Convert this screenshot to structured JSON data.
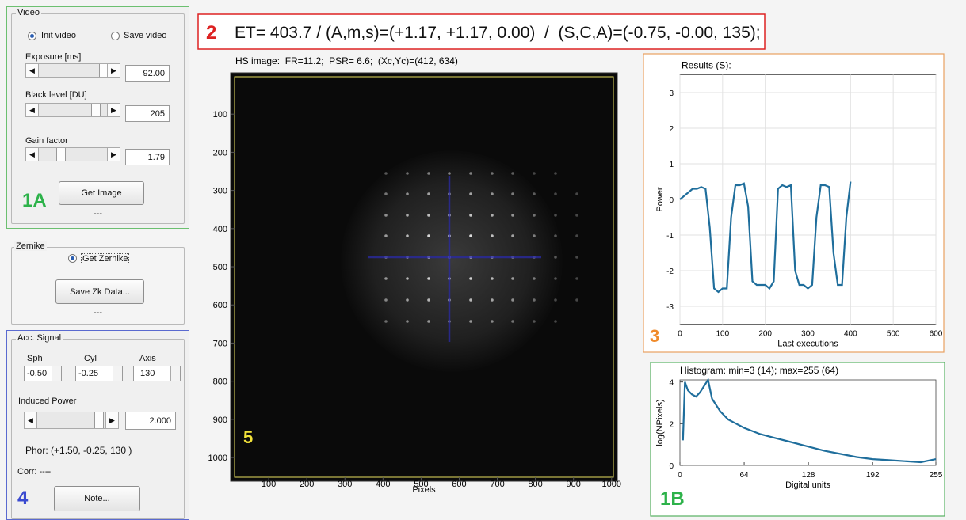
{
  "video": {
    "title": "Video",
    "init_video": "Init video",
    "save_video": "Save video",
    "exposure": {
      "label": "Exposure [ms]",
      "value": "92.00"
    },
    "black_level": {
      "label": "Black level [DU]",
      "value": "205"
    },
    "gain": {
      "label": "Gain factor",
      "value": "1.79"
    },
    "button": "Get Image",
    "status": "---",
    "tag": "1A"
  },
  "zernike": {
    "title": "Zernike",
    "radio": "Get Zernike",
    "button": "Save Zk Data...",
    "status": "---"
  },
  "acc_signal": {
    "title": "Acc. Signal",
    "sph": {
      "label": "Sph",
      "value": "-0.50"
    },
    "cyl": {
      "label": "Cyl",
      "value": "-0.25"
    },
    "axis": {
      "label": "Axis",
      "value": "130"
    },
    "induced_power": {
      "label": "Induced Power",
      "value": "2.000"
    },
    "phor": "Phor: (+1.50, -0.25, 130 )",
    "corr": "Corr: ----",
    "tag": "4",
    "button": "Note..."
  },
  "header": {
    "tag": "2",
    "text": "ET= 403.7 / (A,m,s)=(+1.17, +1.17, 0.00)  /  (S,C,A)=(-0.75, -0.00, 135);"
  },
  "hs_image": {
    "caption": "HS image:  FR=11.2;  PSR= 6.6;  (Xc,Yc)=(412, 634)",
    "tag": "5",
    "x_label": "Pixels",
    "xlim": [
      0,
      1015
    ],
    "ylim": [
      0,
      1060
    ],
    "xticks": [
      100,
      200,
      300,
      400,
      500,
      600,
      700,
      800,
      900,
      1000
    ],
    "yticks": [
      100,
      200,
      300,
      400,
      500,
      600,
      700,
      800,
      900,
      1000
    ]
  },
  "results": {
    "tag": "3",
    "chart_data": {
      "type": "line",
      "title": "Results (S):",
      "x_label": "Last executions",
      "y_label": "Power",
      "grid": true,
      "xlim": [
        0,
        600
      ],
      "ylim": [
        -3.5,
        3.5
      ],
      "xticks": [
        0,
        100,
        200,
        300,
        400,
        500,
        600
      ],
      "yticks": [
        -3,
        -2,
        -1,
        0,
        1,
        2,
        3
      ],
      "x": [
        0,
        10,
        20,
        30,
        40,
        50,
        60,
        70,
        80,
        90,
        100,
        110,
        120,
        130,
        140,
        150,
        160,
        170,
        180,
        190,
        200,
        210,
        220,
        230,
        240,
        250,
        260,
        270,
        280,
        290,
        300,
        310,
        320,
        330,
        340,
        350,
        360,
        370,
        380,
        390,
        400
      ],
      "series": [
        {
          "color": "#1f6e9c",
          "values": [
            0.0,
            0.1,
            0.2,
            0.3,
            0.3,
            0.35,
            0.3,
            -0.8,
            -2.5,
            -2.6,
            -2.5,
            -2.5,
            -0.5,
            0.4,
            0.4,
            0.45,
            -0.2,
            -2.3,
            -2.4,
            -2.4,
            -2.4,
            -2.5,
            -2.3,
            0.3,
            0.4,
            0.35,
            0.4,
            -2.0,
            -2.4,
            -2.4,
            -2.5,
            -2.4,
            -0.5,
            0.4,
            0.4,
            0.35,
            -1.5,
            -2.4,
            -2.4,
            -0.5,
            0.5
          ]
        }
      ]
    }
  },
  "histogram": {
    "tag": "1B",
    "chart_data": {
      "type": "line",
      "title": "Histogram: min=3 (14); max=255 (64)",
      "x_label": "Digital units",
      "y_label": "log(NPixels)",
      "grid": false,
      "xlim": [
        0,
        255
      ],
      "ylim": [
        0,
        4.1
      ],
      "xticks": [
        0,
        64,
        128,
        192,
        255
      ],
      "yticks": [
        0,
        2,
        4
      ],
      "x": [
        3,
        5,
        8,
        12,
        16,
        20,
        24,
        28,
        32,
        40,
        48,
        56,
        64,
        80,
        96,
        112,
        128,
        144,
        160,
        176,
        192,
        208,
        224,
        240,
        255
      ],
      "series": [
        {
          "color": "#1f6e9c",
          "values": [
            1.2,
            4.0,
            3.6,
            3.4,
            3.3,
            3.5,
            3.8,
            4.1,
            3.2,
            2.6,
            2.2,
            2.0,
            1.8,
            1.5,
            1.3,
            1.1,
            0.9,
            0.7,
            0.55,
            0.4,
            0.3,
            0.25,
            0.2,
            0.15,
            0.3
          ]
        }
      ]
    }
  }
}
